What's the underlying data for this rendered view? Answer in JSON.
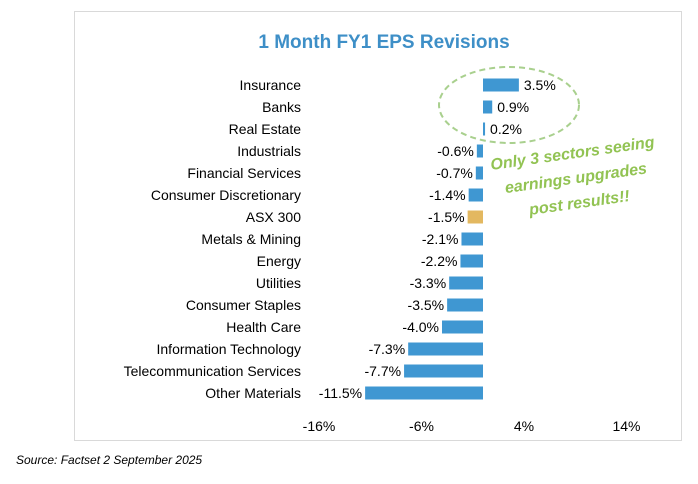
{
  "chart_data": {
    "type": "bar",
    "orientation": "horizontal",
    "title": "1 Month FY1 EPS Revisions",
    "categories": [
      "Insurance",
      "Banks",
      "Real Estate",
      "Industrials",
      "Financial Services",
      "Consumer Discretionary",
      "ASX 300",
      "Metals & Mining",
      "Energy",
      "Utilities",
      "Consumer Staples",
      "Health Care",
      "Information Technology",
      "Telecommunication Services",
      "Other Materials"
    ],
    "values": [
      3.5,
      0.9,
      0.2,
      -0.6,
      -0.7,
      -1.4,
      -1.5,
      -2.1,
      -2.2,
      -3.3,
      -3.5,
      -4.0,
      -7.3,
      -7.7,
      -11.5
    ],
    "value_labels": [
      "3.5%",
      "0.9%",
      "0.2%",
      "-0.6%",
      "-0.7%",
      "-1.4%",
      "-1.5%",
      "-2.1%",
      "-2.2%",
      "-3.3%",
      "-3.5%",
      "-4.0%",
      "-7.3%",
      "-7.7%",
      "-11.5%"
    ],
    "highlight_category": "ASX 300",
    "xlim": [
      -16,
      14
    ],
    "x_ticks": [
      -16,
      -6,
      4,
      14
    ],
    "x_tick_labels": [
      "-16%",
      "-6%",
      "4%",
      "14%"
    ],
    "bar_color": "#3f97d2",
    "highlight_color": "#e3b860",
    "annotation": {
      "text_lines": [
        "Only 3 sectors seeing",
        "earnings upgrades",
        "post results!!"
      ],
      "color": "#92c353"
    },
    "grid": false,
    "legend": "none"
  },
  "source": "Source: Factset 2 September 2025"
}
